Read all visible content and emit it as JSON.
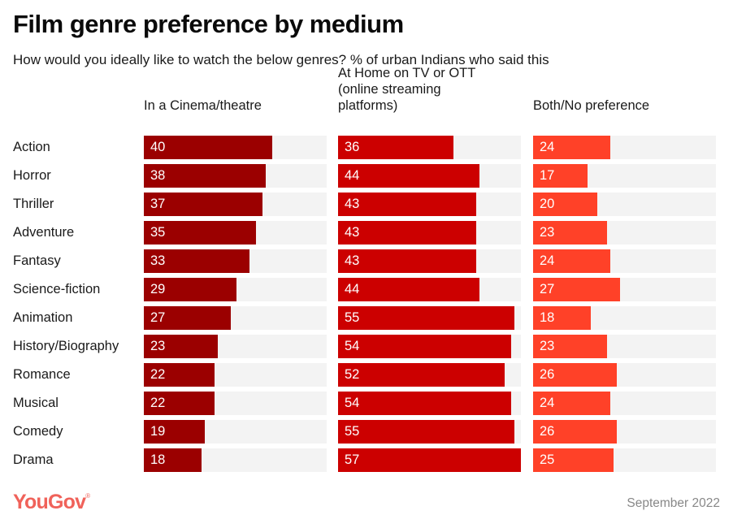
{
  "chart_data": {
    "type": "bar",
    "orientation": "horizontal",
    "title": "Film genre preference by medium",
    "subtitle": "How would you ideally like to watch the below genres? % of urban Indians who said this",
    "categories": [
      "Action",
      "Horror",
      "Thriller",
      "Adventure",
      "Fantasy",
      "Science-fiction",
      "Animation",
      "History/Biography",
      "Romance",
      "Musical",
      "Comedy",
      "Drama"
    ],
    "series": [
      {
        "name": "In a Cinema/theatre",
        "color": "#9b0000",
        "values": [
          40,
          38,
          37,
          35,
          33,
          29,
          27,
          23,
          22,
          22,
          19,
          18
        ]
      },
      {
        "name": "At Home on TV or OTT (online streaming platforms)",
        "color": "#cc0000",
        "values": [
          36,
          44,
          43,
          43,
          43,
          44,
          55,
          54,
          52,
          54,
          55,
          57
        ]
      },
      {
        "name": "Both/No preference",
        "color": "#ff4128",
        "values": [
          24,
          17,
          20,
          23,
          24,
          27,
          18,
          23,
          26,
          24,
          26,
          25
        ]
      }
    ],
    "xlim": [
      0,
      57
    ],
    "track_color": "#f3f3f3",
    "grid": false,
    "legend": "column-headers-top"
  },
  "header_lines": [
    [
      "In a Cinema/theatre"
    ],
    [
      "At Home on TV or OTT",
      "(online streaming",
      "platforms)"
    ],
    [
      "Both/No preference"
    ]
  ],
  "footer": {
    "brand": "YouGov",
    "brand_color": "#f0625a",
    "date": "September 2022"
  }
}
